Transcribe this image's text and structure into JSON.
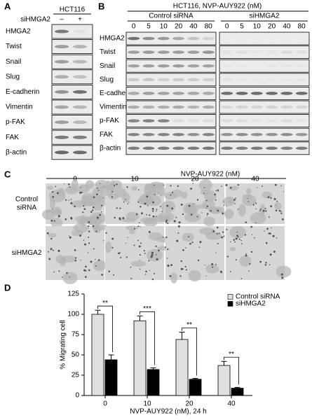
{
  "panels": {
    "A": {
      "label": "A",
      "header": "HCT116",
      "row_label": "siHMGA2",
      "lanes": [
        "–",
        "+"
      ],
      "proteins": [
        "HMGA2",
        "Twist",
        "Snail",
        "Slug",
        "E-cadherin",
        "Vimentin",
        "p-FAK",
        "FAK",
        "β-actin"
      ]
    },
    "B": {
      "label": "B",
      "title": "HCT116, NVP-AUY922 (nM)",
      "groups": [
        "Control siRNA",
        "siHMGA2"
      ],
      "lanes": [
        "0",
        "5",
        "10",
        "20",
        "40",
        "80"
      ],
      "proteins": [
        "HMGA2",
        "Twist",
        "Snail",
        "Slug",
        "E-cadherin",
        "Vimentin",
        "p-FAK",
        "FAK",
        "β-actin"
      ]
    },
    "C": {
      "label": "C",
      "title": "NVP-AUY922 (nM)",
      "columns": [
        "0",
        "10",
        "20",
        "40"
      ],
      "rows": [
        [
          "Control",
          "siRNA"
        ],
        [
          "siHMGA2"
        ]
      ]
    },
    "D": {
      "label": "D"
    }
  },
  "chart_data": {
    "type": "bar",
    "x_label": "NVP-AUY922 (nM), 24 h",
    "y_label": "% Migrating cell",
    "categories": [
      "0",
      "10",
      "20",
      "40"
    ],
    "series": [
      {
        "name": "Control siRNA",
        "color": "#e0e0e0",
        "values": [
          100,
          92,
          69,
          37
        ],
        "errors": [
          5,
          6,
          9,
          5
        ]
      },
      {
        "name": "siHMGA2",
        "color": "#000000",
        "values": [
          44,
          32,
          20,
          9
        ],
        "errors": [
          6,
          2,
          1,
          1
        ]
      }
    ],
    "annotations": [
      "**",
      "***",
      "**",
      "**"
    ],
    "ylim": [
      0,
      125
    ],
    "yticks": [
      0,
      25,
      50,
      75,
      100,
      125
    ],
    "legend": "upper right"
  }
}
